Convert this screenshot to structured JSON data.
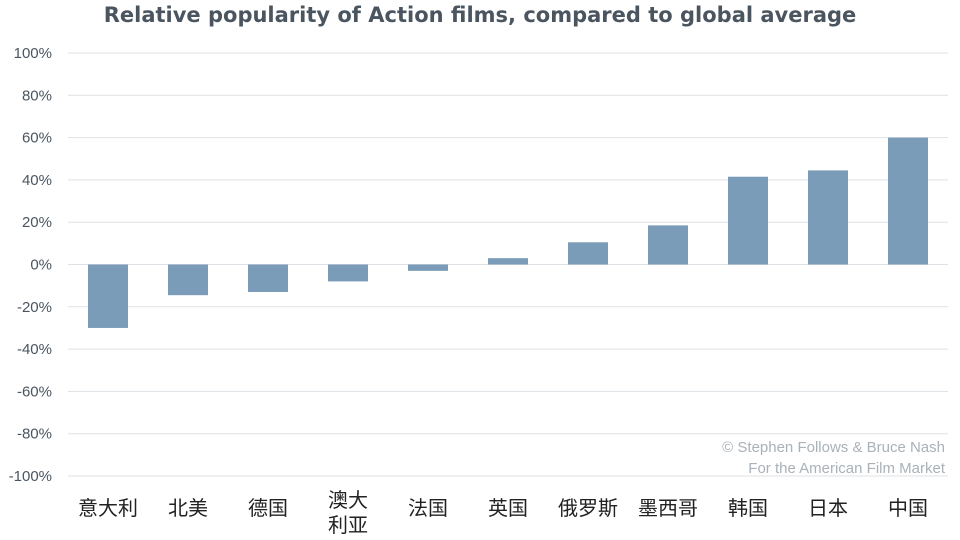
{
  "chart_data": {
    "type": "bar",
    "title": "Relative popularity of Action films, compared to global average",
    "categories": [
      [
        "意大利"
      ],
      [
        "北美"
      ],
      [
        "德国"
      ],
      [
        "澳大",
        "利亚"
      ],
      [
        "法国"
      ],
      [
        "英国"
      ],
      [
        "俄罗斯"
      ],
      [
        "墨西哥"
      ],
      [
        "韩国"
      ],
      [
        "日本"
      ],
      [
        "中国"
      ]
    ],
    "values": [
      -30,
      -14.5,
      -13,
      -8,
      -3,
      3,
      10.5,
      18.5,
      41.5,
      44.5,
      60
    ],
    "ylim": [
      -100,
      100
    ],
    "yticks": [
      100,
      80,
      60,
      40,
      20,
      0,
      -20,
      -40,
      -60,
      -80,
      -100
    ],
    "ytick_labels": [
      "100%",
      "80%",
      "60%",
      "40%",
      "20%",
      "0%",
      "-20%",
      "-40%",
      "-60%",
      "-80%",
      "-100%"
    ],
    "grid": true,
    "bar_color": "#7a9cb8",
    "credit": [
      "© Stephen Follows & Bruce Nash",
      "For the American Film Market"
    ]
  }
}
